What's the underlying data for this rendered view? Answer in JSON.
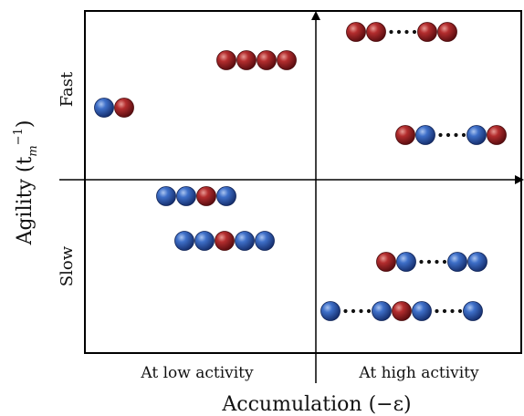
{
  "labels": {
    "fast": "Fast",
    "slow": "Slow",
    "y_axis": "Agility (t",
    "y_axis_sub": "m",
    "y_axis_sup": "−1",
    "y_axis_close": ")",
    "low_activity": "At low activity",
    "high_activity": "At high activity",
    "x_axis": "Accumulation (−ε)"
  },
  "colors": {
    "blue": "#2f5bb5",
    "red": "#b0262a",
    "axis": "#000000"
  },
  "chains": [
    {
      "name": "chain-low-fast-pair",
      "quadrant": "low-fast",
      "beads": [
        "blue",
        "red"
      ]
    },
    {
      "name": "chain-low-fast-four-red",
      "quadrant": "low-fast",
      "beads": [
        "red",
        "red",
        "red",
        "red"
      ]
    },
    {
      "name": "chain-high-fast-red-ellipsis",
      "quadrant": "high-fast",
      "beads": [
        "red",
        "red",
        "dots",
        "red",
        "red"
      ]
    },
    {
      "name": "chain-high-fast-mixed-ellipsis",
      "quadrant": "high-fast",
      "beads": [
        "red",
        "blue",
        "dots",
        "blue",
        "red"
      ]
    },
    {
      "name": "chain-low-slow-four",
      "quadrant": "low-slow",
      "beads": [
        "blue",
        "blue",
        "red",
        "blue"
      ]
    },
    {
      "name": "chain-low-slow-five",
      "quadrant": "low-slow",
      "beads": [
        "blue",
        "blue",
        "red",
        "blue",
        "blue"
      ]
    },
    {
      "name": "chain-high-slow-ellipsis",
      "quadrant": "high-slow",
      "beads": [
        "red",
        "blue",
        "dots",
        "blue",
        "blue"
      ]
    },
    {
      "name": "chain-high-slow-long",
      "quadrant": "high-slow",
      "beads": [
        "blue",
        "dots",
        "blue",
        "red",
        "blue",
        "dots",
        "blue"
      ]
    }
  ]
}
